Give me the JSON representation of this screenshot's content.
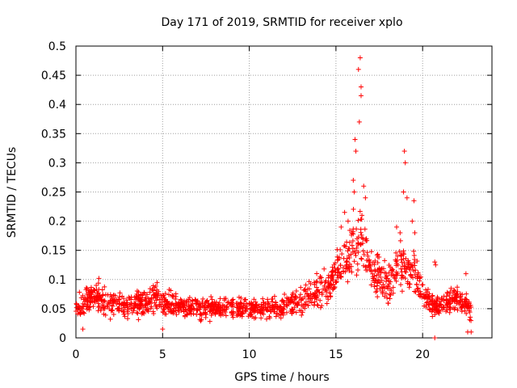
{
  "chart_data": {
    "type": "scatter",
    "title": "Day 171 of 2019, SRMTID for receiver xplo",
    "xlabel": "GPS time / hours",
    "ylabel": "SRMTID / TECUs",
    "xlim": [
      0,
      24
    ],
    "ylim": [
      0,
      0.5
    ],
    "x_ticks": [
      0,
      5,
      10,
      15,
      20
    ],
    "y_ticks": [
      0,
      0.05,
      0.1,
      0.15,
      0.2,
      0.25,
      0.3,
      0.35,
      0.4,
      0.45,
      0.5
    ],
    "x_tick_labels": [
      "0",
      "5",
      "10",
      "15",
      "20"
    ],
    "y_tick_labels": [
      "0",
      "0.05",
      "0.1",
      "0.15",
      "0.2",
      "0.25",
      "0.3",
      "0.35",
      "0.4",
      "0.45",
      "0.5"
    ],
    "grid": true,
    "marker": "+",
    "series": [
      {
        "name": "SRMTID",
        "color": "#ff0000",
        "profile": [
          {
            "x": 0.0,
            "y": 0.055
          },
          {
            "x": 0.5,
            "y": 0.058
          },
          {
            "x": 1.0,
            "y": 0.075
          },
          {
            "x": 1.5,
            "y": 0.065
          },
          {
            "x": 2.0,
            "y": 0.062
          },
          {
            "x": 3.0,
            "y": 0.055
          },
          {
            "x": 4.0,
            "y": 0.06
          },
          {
            "x": 4.5,
            "y": 0.075
          },
          {
            "x": 5.0,
            "y": 0.06
          },
          {
            "x": 6.0,
            "y": 0.055
          },
          {
            "x": 7.0,
            "y": 0.05
          },
          {
            "x": 8.0,
            "y": 0.05
          },
          {
            "x": 9.0,
            "y": 0.05
          },
          {
            "x": 10.0,
            "y": 0.05
          },
          {
            "x": 11.0,
            "y": 0.052
          },
          {
            "x": 12.0,
            "y": 0.055
          },
          {
            "x": 13.0,
            "y": 0.065
          },
          {
            "x": 14.0,
            "y": 0.075
          },
          {
            "x": 14.5,
            "y": 0.085
          },
          {
            "x": 15.0,
            "y": 0.11
          },
          {
            "x": 15.5,
            "y": 0.13
          },
          {
            "x": 16.0,
            "y": 0.15
          },
          {
            "x": 16.5,
            "y": 0.16
          },
          {
            "x": 17.0,
            "y": 0.12
          },
          {
            "x": 17.5,
            "y": 0.1
          },
          {
            "x": 18.0,
            "y": 0.09
          },
          {
            "x": 18.5,
            "y": 0.12
          },
          {
            "x": 19.0,
            "y": 0.12
          },
          {
            "x": 19.5,
            "y": 0.12
          },
          {
            "x": 20.0,
            "y": 0.075
          },
          {
            "x": 20.5,
            "y": 0.06
          },
          {
            "x": 21.0,
            "y": 0.055
          },
          {
            "x": 21.5,
            "y": 0.06
          },
          {
            "x": 22.0,
            "y": 0.07
          },
          {
            "x": 22.5,
            "y": 0.055
          },
          {
            "x": 22.8,
            "y": 0.05
          }
        ],
        "peaks": [
          {
            "x": 16.1,
            "y": 0.34
          },
          {
            "x": 16.15,
            "y": 0.32
          },
          {
            "x": 16.35,
            "y": 0.37
          },
          {
            "x": 16.4,
            "y": 0.48
          },
          {
            "x": 16.45,
            "y": 0.43
          },
          {
            "x": 16.45,
            "y": 0.415
          },
          {
            "x": 16.3,
            "y": 0.46
          },
          {
            "x": 16.0,
            "y": 0.27
          },
          {
            "x": 16.05,
            "y": 0.25
          },
          {
            "x": 16.6,
            "y": 0.26
          },
          {
            "x": 16.7,
            "y": 0.24
          },
          {
            "x": 16.5,
            "y": 0.21
          },
          {
            "x": 15.5,
            "y": 0.215
          },
          {
            "x": 15.7,
            "y": 0.2
          },
          {
            "x": 15.3,
            "y": 0.19
          },
          {
            "x": 18.95,
            "y": 0.32
          },
          {
            "x": 19.0,
            "y": 0.3
          },
          {
            "x": 18.9,
            "y": 0.25
          },
          {
            "x": 19.1,
            "y": 0.24
          },
          {
            "x": 19.5,
            "y": 0.235
          },
          {
            "x": 19.4,
            "y": 0.2
          },
          {
            "x": 18.5,
            "y": 0.19
          },
          {
            "x": 18.7,
            "y": 0.18
          },
          {
            "x": 19.55,
            "y": 0.18
          },
          {
            "x": 20.7,
            "y": 0.13
          },
          {
            "x": 20.75,
            "y": 0.125
          },
          {
            "x": 22.5,
            "y": 0.11
          },
          {
            "x": 22.6,
            "y": 0.01
          },
          {
            "x": 22.8,
            "y": 0.01
          },
          {
            "x": 20.7,
            "y": 0.0
          },
          {
            "x": 5.0,
            "y": 0.015
          },
          {
            "x": 0.4,
            "y": 0.015
          }
        ]
      }
    ]
  }
}
